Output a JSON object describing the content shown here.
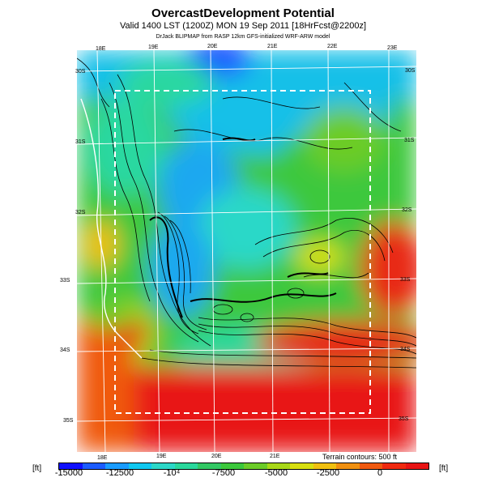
{
  "title": "OvercastDevelopment Potential",
  "subtitle": "Valid 1400 LST (1200Z) MON 19 Sep 2011 [18HrFcst@2200z]",
  "credit": "DrJack BLIPMAP from RASP 12km GFS-initialized WRF-ARW model",
  "map": {
    "lon_labels_top": [
      "18E",
      "19E",
      "20E",
      "21E",
      "22E",
      "23E"
    ],
    "lon_labels_bottom": [
      "18E",
      "19E",
      "20E",
      "21E"
    ],
    "lat_labels_left": [
      "30S",
      "31S",
      "32S",
      "33S",
      "34S",
      "35S"
    ],
    "lat_labels_right": [
      "30S",
      "31S",
      "32S",
      "33S",
      "34S",
      "35S"
    ],
    "terrain_note": "Terrain contours: 500 ft"
  },
  "colorbar": {
    "unit_left": "[ft]",
    "unit_right": "[ft]",
    "labels": [
      "-15000",
      "-12500",
      "-10⁴",
      "-7500",
      "-5000",
      "-2500",
      "0"
    ],
    "colors": [
      "#1010ff",
      "#1c5cff",
      "#1a9cff",
      "#10c8f0",
      "#2cd8c8",
      "#2ad89c",
      "#32c864",
      "#3cc83c",
      "#6ccc28",
      "#a8d818",
      "#d8e010",
      "#f0c010",
      "#f09010",
      "#f05a10",
      "#f02a10",
      "#e81414"
    ]
  }
}
